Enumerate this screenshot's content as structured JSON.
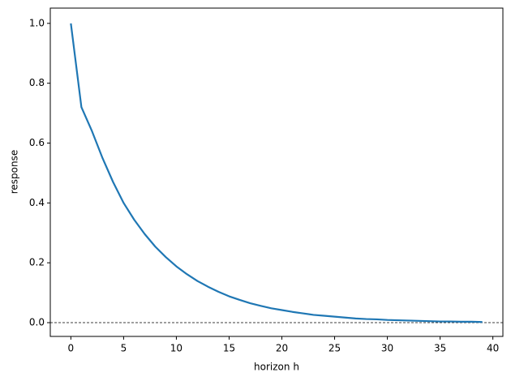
{
  "chart_data": {
    "type": "line",
    "x": [
      0,
      1,
      2,
      3,
      4,
      5,
      6,
      7,
      8,
      9,
      10,
      11,
      12,
      13,
      14,
      15,
      16,
      17,
      18,
      19,
      20,
      21,
      22,
      23,
      24,
      25,
      26,
      27,
      28,
      29,
      30,
      31,
      32,
      33,
      34,
      35,
      36,
      37,
      38,
      39
    ],
    "series": [
      {
        "color": "#1f77b4",
        "values": [
          1.0,
          0.72,
          0.64,
          0.55,
          0.47,
          0.4,
          0.344,
          0.296,
          0.254,
          0.219,
          0.188,
          0.162,
          0.139,
          0.12,
          0.103,
          0.088,
          0.076,
          0.065,
          0.056,
          0.048,
          0.042,
          0.036,
          0.031,
          0.026,
          0.023,
          0.02,
          0.017,
          0.014,
          0.012,
          0.011,
          0.009,
          0.008,
          0.007,
          0.006,
          0.005,
          0.004,
          0.004,
          0.003,
          0.003,
          0.002
        ]
      }
    ],
    "xlabel": "horizon h",
    "ylabel": "response",
    "xlim": [
      -1.95,
      40.95
    ],
    "ylim": [
      -0.046,
      1.051
    ],
    "xticks": [
      0,
      5,
      10,
      15,
      20,
      25,
      30,
      35,
      40
    ],
    "yticks": [
      {
        "value": 0,
        "label": "0.0"
      },
      {
        "value": 0.2,
        "label": "0.2"
      },
      {
        "value": 0.4,
        "label": "0.4"
      },
      {
        "value": 0.6,
        "label": "0.6"
      },
      {
        "value": 0.8,
        "label": "0.8"
      },
      {
        "value": 1,
        "label": "1.0"
      }
    ],
    "reference_line": 0
  }
}
